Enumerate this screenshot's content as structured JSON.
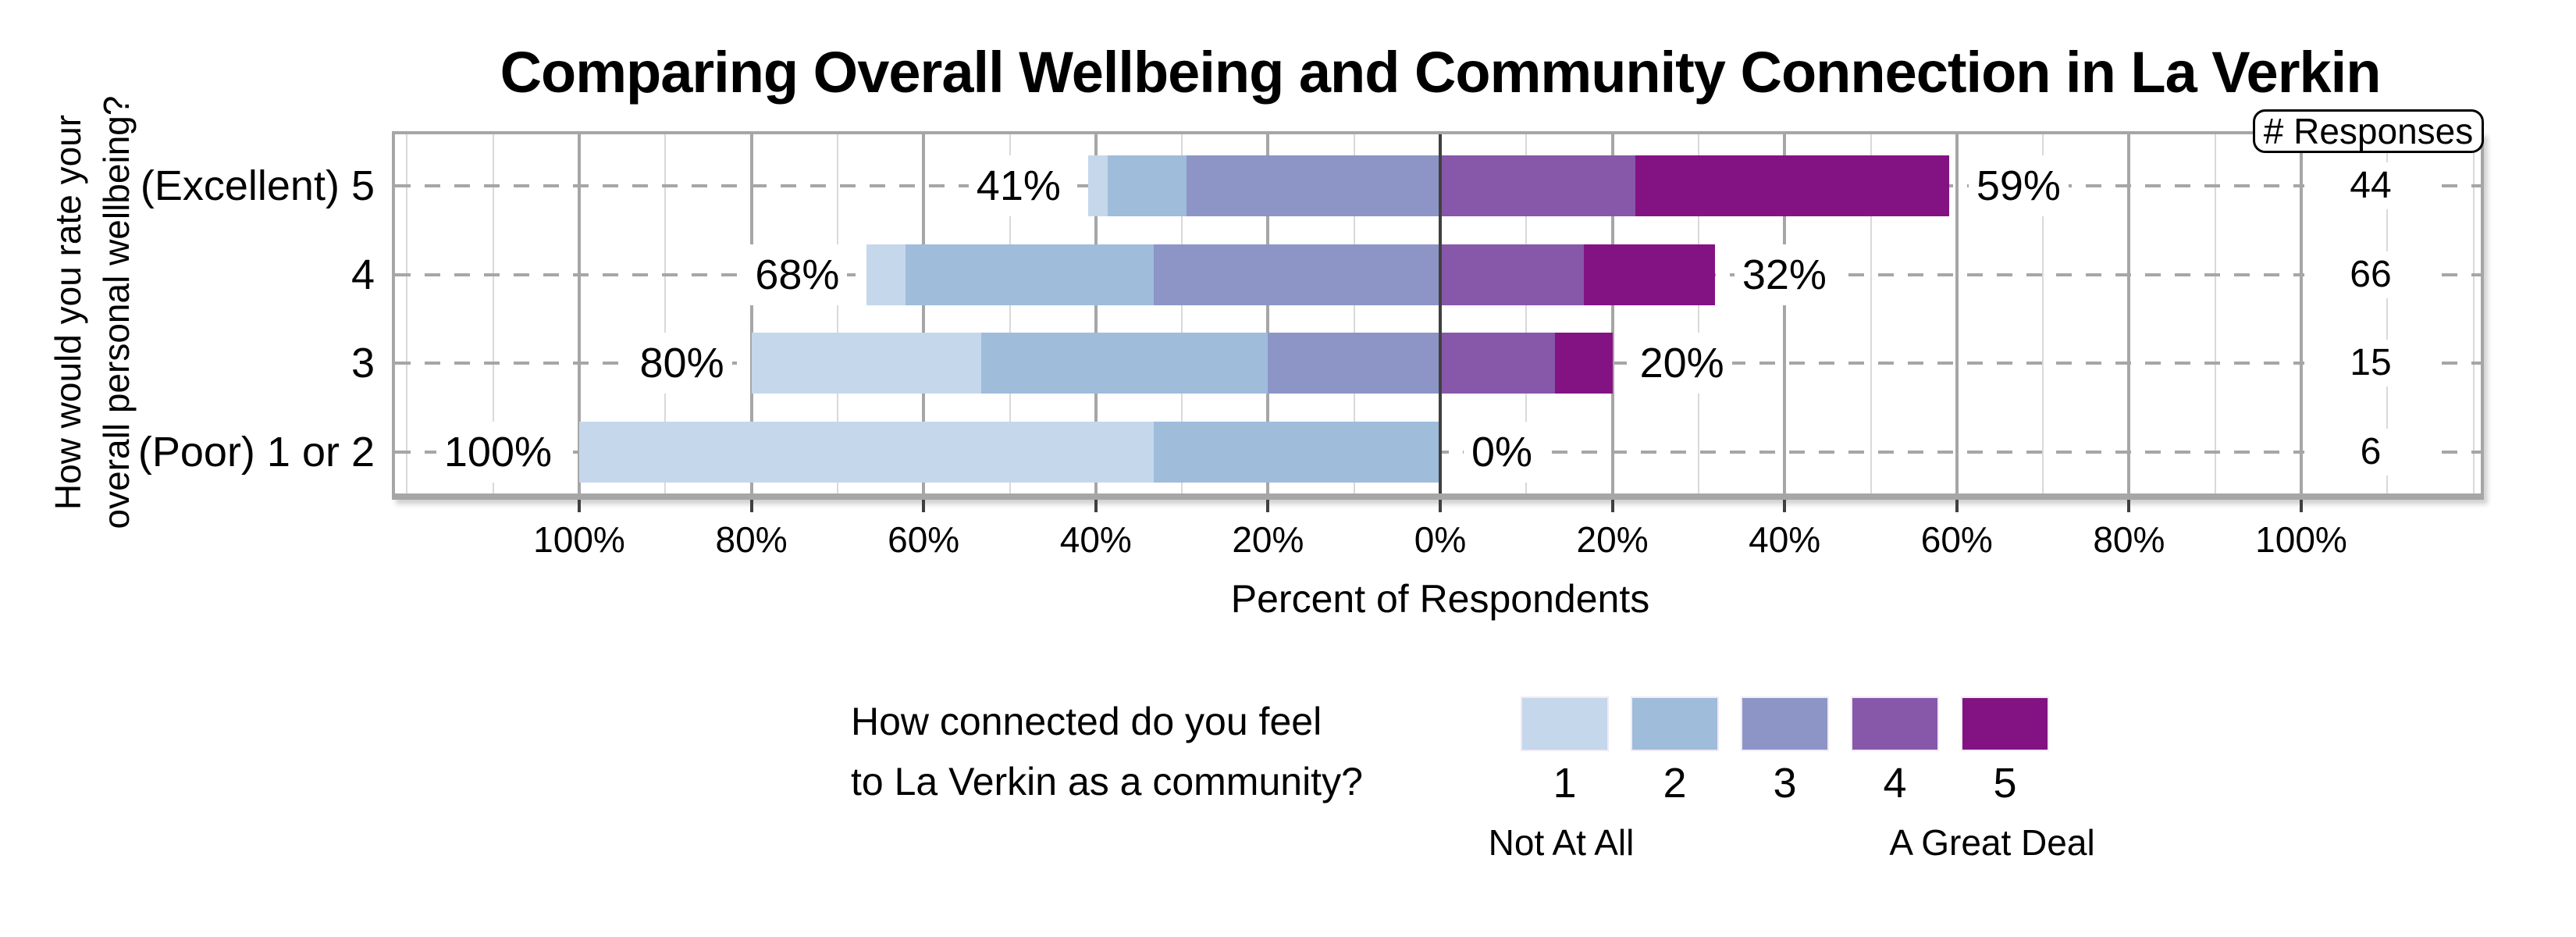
{
  "title": "Comparing Overall Wellbeing and Community Connection in La Verkin",
  "y_axis": {
    "title_lines": [
      "How would you rate your",
      "overall personal wellbeing?"
    ]
  },
  "x_axis": {
    "title": "Percent of Respondents"
  },
  "responses_column": {
    "header": "# Responses"
  },
  "legend": {
    "question_lines": [
      "How connected do you feel",
      "to La Verkin as a community?"
    ],
    "scale_min_label": "Not At All",
    "scale_max_label": "A Great Deal",
    "items": [
      {
        "value": "1",
        "color": "#c5d7ea"
      },
      {
        "value": "2",
        "color": "#9fbcdb"
      },
      {
        "value": "3",
        "color": "#8c95c6"
      },
      {
        "value": "4",
        "color": "#8757a9"
      },
      {
        "value": "5",
        "color": "#831383"
      }
    ]
  },
  "chart_data": {
    "type": "bar",
    "variant": "diverging-stacked-horizontal",
    "title": "Comparing Overall Wellbeing and Community Connection in La Verkin",
    "xlabel": "Percent of Respondents",
    "ylabel": "How would you rate your overall personal wellbeing?",
    "x_tick_labels": [
      "100%",
      "80%",
      "60%",
      "40%",
      "20%",
      "0%",
      "20%",
      "40%",
      "60%",
      "80%",
      "100%"
    ],
    "x_range_pct": [
      -100,
      100
    ],
    "grid": {
      "minor_step_pct": 10,
      "major_step_pct": 20,
      "row_gridlines": "dashed"
    },
    "legend_position": "bottom",
    "series": [
      "1",
      "2",
      "3",
      "4",
      "5"
    ],
    "left_side_series": [
      "1",
      "2",
      "3"
    ],
    "right_side_series": [
      "4",
      "5"
    ],
    "rows": [
      {
        "category": "(Excellent) 5",
        "n_responses": 44,
        "left_label": "41%",
        "right_label": "59%",
        "segments_pct": {
          "1": 2.3,
          "2": 9.1,
          "3": 29.5,
          "4": 22.7,
          "5": 36.4
        }
      },
      {
        "category": "4",
        "n_responses": 66,
        "left_label": "68%",
        "right_label": "32%",
        "segments_pct": {
          "1": 4.5,
          "2": 28.8,
          "3": 33.3,
          "4": 16.7,
          "5": 15.2
        }
      },
      {
        "category": "3",
        "n_responses": 15,
        "left_label": "80%",
        "right_label": "20%",
        "segments_pct": {
          "1": 26.7,
          "2": 33.3,
          "3": 20.0,
          "4": 13.3,
          "5": 6.7
        }
      },
      {
        "category": "(Poor) 1 or 2",
        "n_responses": 6,
        "left_label": "100%",
        "right_label": "0%",
        "segments_pct": {
          "1": 66.7,
          "2": 33.3,
          "3": 0,
          "4": 0,
          "5": 0
        }
      }
    ]
  },
  "colors": {
    "background": "#ffffff",
    "text": "#000000",
    "grid_minor": "#d9d9d9",
    "grid_major": "#a6a6a6",
    "axis_border": "#a6a6a6",
    "zero_line": "#404040",
    "row_dash": "#a6a6a6"
  }
}
